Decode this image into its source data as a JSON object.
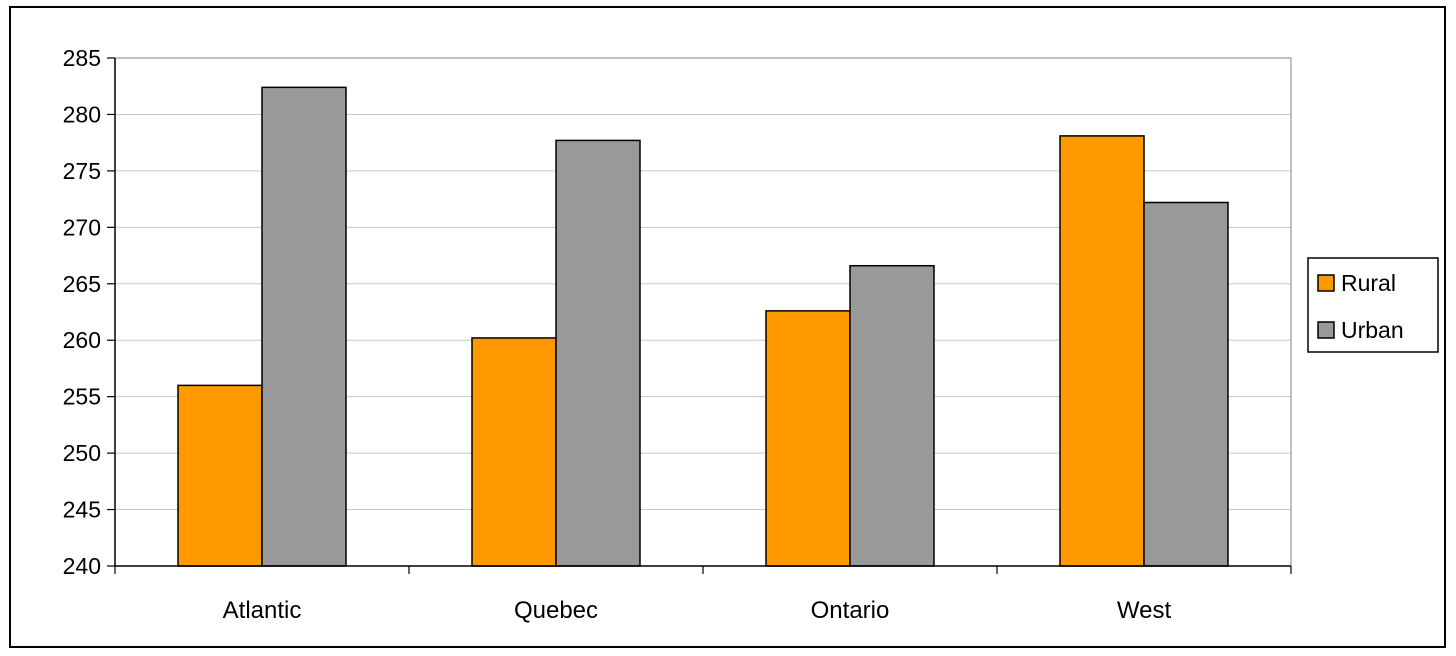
{
  "chart_data": {
    "type": "bar",
    "title": "",
    "xlabel": "",
    "ylabel": "",
    "categories": [
      "Atlantic",
      "Quebec",
      "Ontario",
      "West"
    ],
    "series": [
      {
        "name": "Rural",
        "color": "#FF9900",
        "values": [
          256,
          260.2,
          262.6,
          278.1
        ]
      },
      {
        "name": "Urban",
        "color": "#999999",
        "values": [
          282.4,
          277.7,
          266.6,
          272.2
        ]
      }
    ],
    "ylim": [
      240,
      285
    ],
    "yticks": [
      "240",
      "245",
      "250",
      "255",
      "260",
      "265",
      "270",
      "275",
      "280",
      "285"
    ],
    "grid": true,
    "legend_position": "right"
  }
}
